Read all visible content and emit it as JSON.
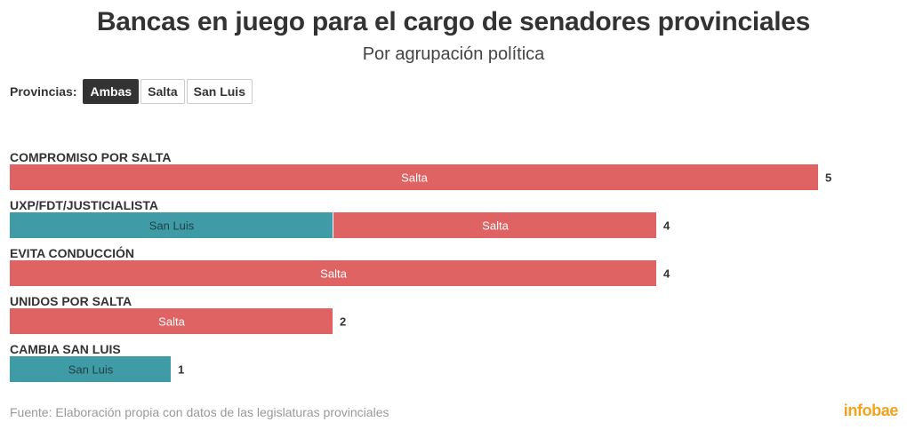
{
  "header": {
    "title": "Bancas en juego para el cargo de senadores provinciales",
    "subtitle": "Por agrupación política"
  },
  "filters": {
    "label": "Provincias:",
    "buttons": [
      "Ambas",
      "Salta",
      "San Luis"
    ],
    "active": "Ambas"
  },
  "colors": {
    "Salta": "#e06363",
    "San Luis": "#3f9ca6",
    "brand": "#f4a21b"
  },
  "chart_data": {
    "type": "bar",
    "orientation": "horizontal",
    "stacked": true,
    "title": "Bancas en juego para el cargo de senadores provinciales",
    "subtitle": "Por agrupación política",
    "xlim": [
      0,
      5
    ],
    "categories": [
      "COMPROMISO POR SALTA",
      "UXP/FDT/JUSTICIALISTA",
      "EVITA CONDUCCIÓN",
      "UNIDOS POR SALTA",
      "CAMBIA SAN LUIS"
    ],
    "series": [
      {
        "name": "San Luis",
        "values": [
          0,
          2,
          0,
          0,
          1
        ]
      },
      {
        "name": "Salta",
        "values": [
          5,
          2,
          4,
          2,
          0
        ]
      }
    ],
    "totals": [
      5,
      4,
      4,
      2,
      1
    ]
  },
  "footer": {
    "source": "Fuente: Elaboración propia con datos de las legislaturas provinciales",
    "brand": "infobae"
  }
}
